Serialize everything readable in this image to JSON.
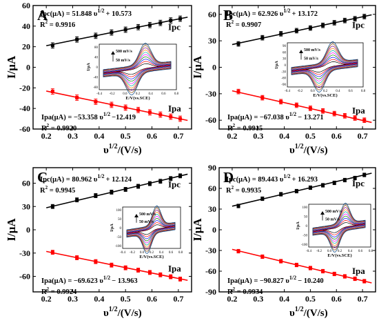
{
  "figure": {
    "panels": [
      {
        "label": "A",
        "ylabel": "I/μA",
        "xlabel": "υ1/2/(V/s)"
      },
      {
        "label": "B",
        "ylabel": "I/μA",
        "xlabel": "υ1/2/(V/s)"
      },
      {
        "label": "C",
        "ylabel": "I/μA",
        "xlabel": "υ1/2/(V/s)"
      },
      {
        "label": "D",
        "ylabel": "I/μA",
        "xlabel": "υ1/2/(V/s)"
      }
    ]
  },
  "chart_data": [
    {
      "type": "scatter",
      "panel": "A",
      "xlabel": "υ1/2/(V/s)",
      "ylabel": "I/μA",
      "xlim": [
        0.15,
        0.75
      ],
      "ylim": [
        -60,
        60
      ],
      "xticks": [
        0.2,
        0.3,
        0.4,
        0.5,
        0.6,
        0.7
      ],
      "yticks": [
        -60,
        -40,
        -20,
        0,
        20,
        40,
        60
      ],
      "x": [
        0.224,
        0.316,
        0.387,
        0.447,
        0.5,
        0.548,
        0.592,
        0.632,
        0.671,
        0.707
      ],
      "series": [
        {
          "name": "Ipc",
          "color": "#000000",
          "values": [
            21.2,
            27.0,
            30.6,
            33.8,
            36.5,
            39.0,
            41.0,
            43.1,
            45.5,
            47.2
          ],
          "fit": {
            "slope": 51.848,
            "intercept": 10.573
          },
          "eq_prefix": "Ipc(μA) = 51.848 υ",
          "eq_sup": "1/2",
          "eq_suffix": "+ 10.573",
          "r2": "R2 = 0.9916"
        },
        {
          "name": "Ipa",
          "color": "#ff0000",
          "values": [
            -23.5,
            -29.5,
            -33.5,
            -36.5,
            -39.2,
            -41.5,
            -43.8,
            -46.0,
            -48.0,
            -50.0
          ],
          "fit": {
            "slope": -53.358,
            "intercept": -12.419
          },
          "eq_prefix": "Ipa(μA) = −53.358 υ",
          "eq_sup": "1/2",
          "eq_suffix": "−12.419",
          "r2": "R2 = 0.9920"
        }
      ],
      "inset": {
        "xlabel": "E/V(vs.SCE)",
        "ylabel": "I/μA",
        "top_label": "500 mV/s",
        "bottom_label": "50 mV/s",
        "xticks": [
          "-0.4",
          "-0.2",
          "0.0",
          "0.2",
          "0.4",
          "0.6",
          "0.8"
        ],
        "yticks": [
          "80",
          "40",
          "0",
          "-40",
          "-80"
        ]
      }
    },
    {
      "type": "scatter",
      "panel": "B",
      "xlabel": "υ1/2/(V/s)",
      "ylabel": "I/μA",
      "xlim": [
        0.15,
        0.75
      ],
      "ylim": [
        -70,
        70
      ],
      "xticks": [
        0.2,
        0.3,
        0.4,
        0.5,
        0.6,
        0.7
      ],
      "yticks": [
        -60,
        -30,
        0,
        30,
        60
      ],
      "x": [
        0.224,
        0.316,
        0.387,
        0.447,
        0.5,
        0.548,
        0.592,
        0.632,
        0.671,
        0.707
      ],
      "series": [
        {
          "name": "Ipc",
          "color": "#000000",
          "values": [
            26.5,
            33.5,
            38.0,
            41.5,
            44.5,
            47.5,
            50.5,
            53.0,
            55.0,
            57.5
          ],
          "fit": {
            "slope": 62.926,
            "intercept": 13.172
          },
          "eq_prefix": "Ipc(μA) = 62.926 υ",
          "eq_sup": "1/2",
          "eq_suffix": "+ 13.172",
          "r2": "R2 = 0.9907"
        },
        {
          "name": "Ipa",
          "color": "#ff0000",
          "values": [
            -27.5,
            -34.5,
            -39.0,
            -43.0,
            -46.5,
            -49.5,
            -52.5,
            -55.0,
            -57.5,
            -60.0
          ],
          "fit": {
            "slope": -67.038,
            "intercept": -13.271
          },
          "eq_prefix": "Ipa(μA) = −67.038 υ",
          "eq_sup": "1/2",
          "eq_suffix": "− 13.271",
          "r2": "R2 = 0.9915"
        }
      ],
      "inset": {
        "xlabel": "E/V(vs.SCE)",
        "ylabel": "I/μA",
        "top_label": "500 mV/s",
        "bottom_label": "50 mV/s",
        "xticks": [
          "-0.4",
          "-0.2",
          "0.0",
          "0.2",
          "0.4",
          "0.6",
          "0.8"
        ],
        "yticks": [
          "90",
          "60",
          "30",
          "0",
          "-30",
          "-60",
          "-90"
        ]
      }
    },
    {
      "type": "scatter",
      "panel": "C",
      "xlabel": "υ1/2/(V/s)",
      "ylabel": "I/μA",
      "xlim": [
        0.15,
        0.75
      ],
      "ylim": [
        -80,
        80
      ],
      "xticks": [
        0.2,
        0.3,
        0.4,
        0.5,
        0.6,
        0.7
      ],
      "yticks": [
        -60,
        -30,
        0,
        30,
        60
      ],
      "x": [
        0.224,
        0.316,
        0.387,
        0.447,
        0.5,
        0.548,
        0.592,
        0.632,
        0.671,
        0.707
      ],
      "series": [
        {
          "name": "Ipc",
          "color": "#000000",
          "values": [
            30.0,
            38.5,
            44.0,
            48.5,
            52.0,
            56.0,
            59.5,
            62.5,
            66.0,
            69.5
          ],
          "fit": {
            "slope": 80.962,
            "intercept": 12.124
          },
          "eq_prefix": "Ipc(μA) = 80.962 υ",
          "eq_sup": "1/2",
          "eq_suffix": "+ 12.124",
          "r2": "R2 = 0.9945"
        },
        {
          "name": "Ipa",
          "color": "#ff0000",
          "values": [
            -29.0,
            -36.0,
            -41.0,
            -45.5,
            -49.0,
            -52.0,
            -55.0,
            -58.0,
            -60.5,
            -63.5
          ],
          "fit": {
            "slope": -69.623,
            "intercept": -13.963
          },
          "eq_prefix": "Ipa(μA) = −69.623 υ",
          "eq_sup": "1/2",
          "eq_suffix": "− 13.963",
          "r2": "R2 = 0.9924"
        }
      ],
      "inset": {
        "xlabel": "E/V(vs.SCE)",
        "ylabel": "I/μA",
        "top_label": "500 mV/s",
        "bottom_label": "50 mV/s",
        "xticks": [
          "-0.4",
          "-0.2",
          "0.0",
          "0.2",
          "0.4",
          "0.6",
          "0.8"
        ],
        "yticks": [
          "100",
          "50",
          "0",
          "-50",
          "-100"
        ]
      }
    },
    {
      "type": "scatter",
      "panel": "D",
      "xlabel": "υ1/2/(V/s)",
      "ylabel": "I/μA",
      "xlim": [
        0.15,
        0.75
      ],
      "ylim": [
        -90,
        90
      ],
      "xticks": [
        0.2,
        0.3,
        0.4,
        0.5,
        0.6,
        0.7
      ],
      "yticks": [
        -90,
        -60,
        -30,
        0,
        30,
        60,
        90
      ],
      "x": [
        0.224,
        0.316,
        0.387,
        0.447,
        0.5,
        0.548,
        0.592,
        0.632,
        0.671,
        0.707
      ],
      "series": [
        {
          "name": "Ipc",
          "color": "#000000",
          "values": [
            34.5,
            45.0,
            51.5,
            56.0,
            61.0,
            64.5,
            68.0,
            72.0,
            75.0,
            79.5
          ],
          "fit": {
            "slope": 89.443,
            "intercept": 16.293
          },
          "eq_prefix": "Ipc(μA) = 89.443 υ",
          "eq_sup": "1/2",
          "eq_suffix": "+ 16.293",
          "r2": "R2 = 0.9935"
        },
        {
          "name": "Ipa",
          "color": "#ff0000",
          "values": [
            -31.0,
            -39.0,
            -45.5,
            -51.0,
            -55.5,
            -60.0,
            -64.0,
            -67.5,
            -71.0,
            -74.5
          ],
          "fit": {
            "slope": -90.827,
            "intercept": -10.24
          },
          "eq_prefix": "Ipa(μA) = −90.827 υ",
          "eq_sup": "1/2",
          "eq_suffix": "− 10.240",
          "r2": "R2 = 0.9934"
        }
      ],
      "inset": {
        "xlabel": "E/V(vs.SCE)",
        "ylabel": "I/μA",
        "top_label": "500 mV/s",
        "bottom_label": "50 mV/s",
        "xticks": [
          "-0.4",
          "-0.2",
          "0.0",
          "0.2",
          "0.4",
          "0.6",
          "0.8"
        ],
        "yticks": [
          "100",
          "50",
          "0",
          "-50",
          "-100"
        ]
      }
    }
  ]
}
